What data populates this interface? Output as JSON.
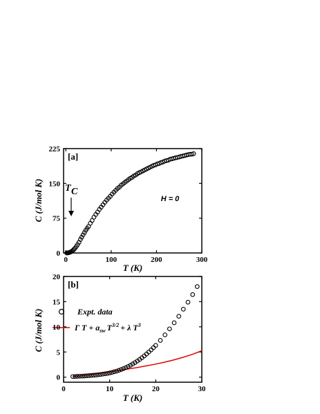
{
  "chart_data": [
    {
      "type": "scatter",
      "panel_label": "[a]",
      "xlabel": "T (K)",
      "ylabel": "C (J/mol K)",
      "xlim": [
        -5,
        300
      ],
      "ylim": [
        0,
        225
      ],
      "xticks": [
        0,
        100,
        200,
        300
      ],
      "yticks": [
        0,
        75,
        150,
        225
      ],
      "grid": false,
      "annotations": {
        "field": "H = 0",
        "tc_main": "T",
        "tc_sub": "C",
        "tc_x": 47,
        "tc_y": 48
      },
      "series": [
        {
          "marker": "open-circle",
          "x": [
            2,
            4,
            6,
            8,
            10,
            12,
            14,
            16,
            18,
            20,
            23,
            26,
            29,
            32,
            35,
            38,
            41,
            44,
            47,
            50,
            54,
            58,
            62,
            66,
            70,
            74,
            78,
            82,
            86,
            90,
            94,
            98,
            102,
            106,
            110,
            114,
            118,
            122,
            126,
            130,
            134,
            138,
            142,
            146,
            150,
            154,
            158,
            162,
            166,
            170,
            174,
            178,
            182,
            186,
            190,
            194,
            198,
            202,
            206,
            210,
            214,
            218,
            222,
            226,
            230,
            234,
            238,
            242,
            246,
            250,
            254,
            258,
            262,
            266,
            270,
            274,
            278,
            282
          ],
          "y": [
            0,
            0.1,
            0.4,
            1,
            2,
            3,
            4,
            6,
            8,
            10,
            14,
            18,
            23,
            29,
            34,
            39,
            44,
            49,
            53,
            57,
            64,
            70,
            77,
            83,
            88,
            94,
            99,
            104,
            109,
            114,
            118,
            122,
            127,
            131,
            135,
            139,
            142,
            146,
            149,
            152,
            155,
            158,
            161,
            163,
            166,
            168,
            171,
            173,
            175,
            177,
            179,
            181,
            183,
            185,
            187,
            189,
            190,
            192,
            193,
            195,
            196,
            198,
            199,
            200,
            202,
            203,
            204,
            205,
            206,
            207,
            208,
            209,
            210,
            211,
            212,
            213,
            213,
            214
          ]
        }
      ]
    },
    {
      "type": "scatter",
      "panel_label": "[b]",
      "xlabel": "T (K)",
      "ylabel": "C (J/mol K)",
      "xlim": [
        0,
        30
      ],
      "ylim": [
        -1,
        20
      ],
      "xticks": [
        0,
        10,
        20,
        30
      ],
      "yticks": [
        0,
        5,
        10,
        15,
        20
      ],
      "grid": false,
      "legend_position": "top-left",
      "series": [
        {
          "name": "Expt. data",
          "marker": "open-circle",
          "x": [
            2,
            2.5,
            3,
            3.5,
            4,
            4.5,
            5,
            5.5,
            6,
            6.5,
            7,
            7.5,
            8,
            8.5,
            9,
            9.5,
            10,
            10.5,
            11,
            11.5,
            12,
            12.5,
            13,
            13.5,
            14,
            14.5,
            15,
            15.5,
            16,
            16.5,
            17,
            17.5,
            18,
            18.5,
            19,
            19.5,
            20,
            21,
            22,
            23,
            24,
            25,
            26,
            27,
            28,
            29
          ],
          "y": [
            0.12,
            0.14,
            0.17,
            0.19,
            0.21,
            0.24,
            0.27,
            0.3,
            0.34,
            0.38,
            0.43,
            0.48,
            0.54,
            0.6,
            0.67,
            0.75,
            0.84,
            0.95,
            1.07,
            1.2,
            1.35,
            1.52,
            1.7,
            1.9,
            2.12,
            2.36,
            2.62,
            2.9,
            3.2,
            3.52,
            3.86,
            4.22,
            4.6,
            5.0,
            5.42,
            5.86,
            6.32,
            7.3,
            8.4,
            9.6,
            10.8,
            12.1,
            13.5,
            14.9,
            16.4,
            18.0
          ]
        },
        {
          "name_parts": [
            "Γ T + a",
            "sw",
            "T",
            "3/2",
            "+ λ T",
            "3"
          ],
          "line_color": "#e00000",
          "x": [
            2,
            4,
            6,
            8,
            10,
            12,
            14,
            16,
            18,
            20,
            22,
            24,
            26,
            28,
            30
          ],
          "y": [
            0.12,
            0.32,
            0.55,
            0.8,
            1.06,
            1.33,
            1.62,
            1.92,
            2.25,
            2.6,
            3.0,
            3.45,
            3.95,
            4.55,
            5.25
          ]
        }
      ]
    }
  ]
}
